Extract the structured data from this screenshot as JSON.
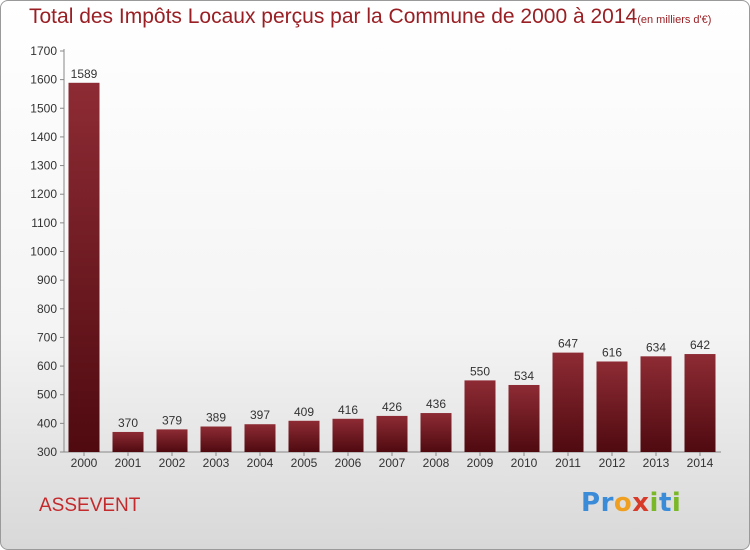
{
  "title": "Total des Impôts Locaux perçus par la Commune de 2000 à 2014",
  "unit": "(en milliers d'€)",
  "commune": "ASSEVENT",
  "logo": [
    "P",
    "r",
    "o",
    "x",
    "i",
    "t",
    "i"
  ],
  "colors": {
    "title": "#9a1f24",
    "bar_top": "#8e2b34",
    "bar_bottom": "#4f0a10",
    "axis": "#888888",
    "label": "#333333"
  },
  "chart_data": {
    "type": "bar",
    "categories": [
      "2000",
      "2001",
      "2002",
      "2003",
      "2004",
      "2005",
      "2006",
      "2007",
      "2008",
      "2009",
      "2010",
      "2011",
      "2012",
      "2013",
      "2014"
    ],
    "values": [
      1589,
      370,
      379,
      389,
      397,
      409,
      416,
      426,
      436,
      550,
      534,
      647,
      616,
      634,
      642
    ],
    "ylim": [
      300,
      1700
    ],
    "yticks": [
      300,
      400,
      500,
      600,
      700,
      800,
      900,
      1000,
      1100,
      1200,
      1300,
      1400,
      1500,
      1600,
      1700
    ],
    "title": "Total des Impôts Locaux perçus par la Commune de 2000 à 2014",
    "xlabel": "",
    "ylabel": "",
    "grid": false
  }
}
